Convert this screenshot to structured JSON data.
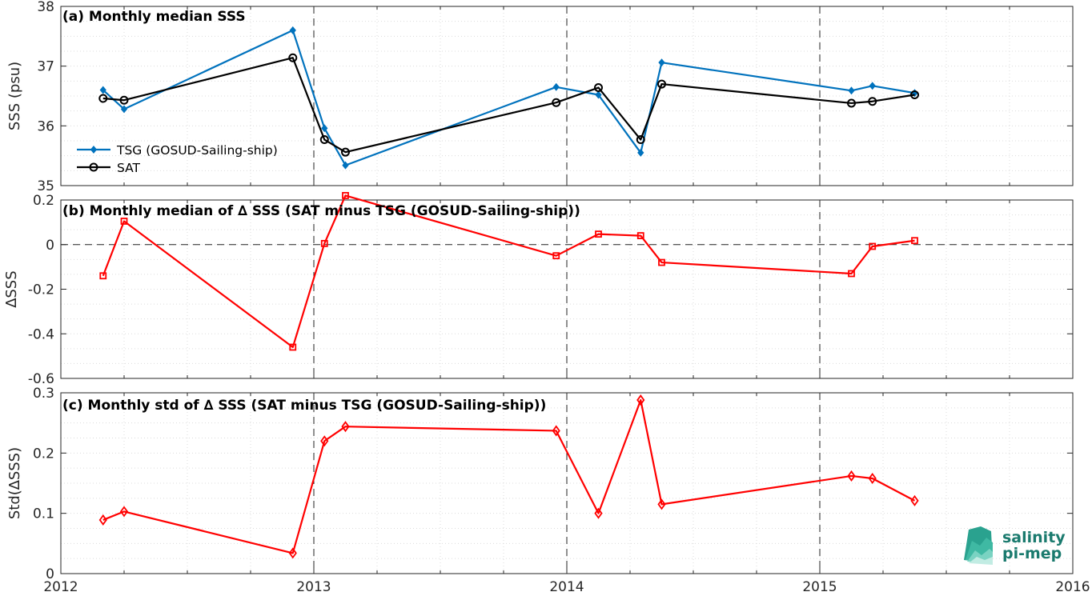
{
  "chart_data": [
    {
      "type": "line",
      "title": "(a) Monthly median SSS",
      "xlabel": "",
      "ylabel": "SSS (psu)",
      "xlim": [
        2012,
        2016
      ],
      "ylim": [
        35,
        38
      ],
      "yticks": [
        "35",
        "36",
        "37",
        "38"
      ],
      "grid": true,
      "legend_position": "lower-left",
      "series": [
        {
          "name": "TSG (GOSUD-Sailing-ship)",
          "color": "#0072BD",
          "marker": "diamond",
          "x": [
            2012.167,
            2012.25,
            2012.917,
            2013.042,
            2013.125,
            2013.958,
            2014.125,
            2014.292,
            2014.375,
            2015.125,
            2015.208,
            2015.375
          ],
          "y": [
            36.6,
            36.28,
            37.6,
            35.96,
            35.34,
            36.65,
            36.52,
            35.55,
            37.06,
            36.59,
            36.67,
            36.55
          ]
        },
        {
          "name": "SAT",
          "color": "#000000",
          "marker": "circle",
          "x": [
            2012.167,
            2012.25,
            2012.917,
            2013.042,
            2013.125,
            2013.958,
            2014.125,
            2014.292,
            2014.375,
            2015.125,
            2015.208,
            2015.375
          ],
          "y": [
            36.46,
            36.43,
            37.14,
            35.77,
            35.56,
            36.39,
            36.64,
            35.77,
            36.7,
            36.38,
            36.41,
            36.52
          ]
        }
      ]
    },
    {
      "type": "line",
      "title": "(b) Monthly median of ∆ SSS (SAT minus TSG (GOSUD-Sailing-ship))",
      "xlabel": "",
      "ylabel": "∆SSS",
      "xlim": [
        2012,
        2016
      ],
      "ylim": [
        -0.6,
        0.2
      ],
      "yticks": [
        "-0.6",
        "-0.4",
        "-0.2",
        "0",
        "0.2"
      ],
      "grid": true,
      "series": [
        {
          "color": "#FF0000",
          "marker": "square",
          "x": [
            2012.167,
            2012.25,
            2012.917,
            2013.042,
            2013.125,
            2013.958,
            2014.125,
            2014.292,
            2014.375,
            2015.125,
            2015.208,
            2015.375
          ],
          "y": [
            -0.14,
            0.105,
            -0.46,
            0.005,
            0.22,
            -0.05,
            0.047,
            0.04,
            -0.08,
            -0.13,
            -0.008,
            0.018
          ]
        }
      ]
    },
    {
      "type": "line",
      "title": "(c) Monthly std of ∆ SSS (SAT minus TSG (GOSUD-Sailing-ship))",
      "xlabel": "",
      "ylabel": "Std(∆SSS)",
      "xlim": [
        2012,
        2016
      ],
      "ylim": [
        0,
        0.3
      ],
      "yticks": [
        "0",
        "0.1",
        "0.2",
        "0.3"
      ],
      "xticks": [
        "2012",
        "2013",
        "2014",
        "2015",
        "2016"
      ],
      "grid": true,
      "series": [
        {
          "color": "#FF0000",
          "marker": "diamond",
          "x": [
            2012.167,
            2012.25,
            2012.917,
            2013.042,
            2013.125,
            2013.958,
            2014.125,
            2014.292,
            2014.375,
            2015.125,
            2015.208,
            2015.375
          ],
          "y": [
            0.089,
            0.103,
            0.034,
            0.22,
            0.244,
            0.237,
            0.1,
            0.288,
            0.115,
            0.162,
            0.158,
            0.121
          ]
        }
      ]
    }
  ],
  "logo": {
    "line1": "salinity",
    "line2": "pi-mep",
    "color": "#1a9e8c"
  }
}
